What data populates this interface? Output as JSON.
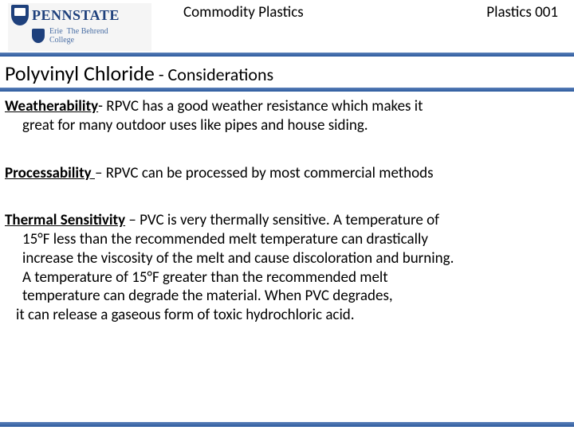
{
  "header": {
    "logo": {
      "main_text": "PENNSTATE",
      "sub_text": "Erie",
      "college_line1": "The Behrend",
      "college_line2": "College"
    },
    "center_title": "Commodity Plastics",
    "right_title": "Plastics 001"
  },
  "slide": {
    "title_main": "Polyvinyl Chloride",
    "title_sub": " - Considerations"
  },
  "sections": {
    "weatherability": {
      "label": "Weatherability",
      "text_line1": "- RPVC has a good weather resistance which makes it",
      "text_line2": "great for many outdoor uses like pipes and house siding."
    },
    "processability": {
      "label": "Processability ",
      "text": "– RPVC can be processed by most commercial methods"
    },
    "thermal": {
      "label": "Thermal Sensitivity",
      "text_line1": " – PVC is very thermally sensitive.  A temperature of",
      "text_line2": "15°F less than the recommended melt temperature can drastically",
      "text_line3": "increase the viscosity of the melt and cause discoloration and burning.",
      "text_line4": "A temperature of 15°F greater than the recommended melt",
      "text_line5": "temperature  can degrade the material.  When PVC degrades,",
      "text_line6": " it can release a gaseous form of toxic hydrochloric acid."
    }
  },
  "style": {
    "accent_color": "#2d5a9e",
    "title_fontsize": 26,
    "body_fontsize": 19,
    "header_fontsize": 19,
    "background": "#ffffff"
  }
}
